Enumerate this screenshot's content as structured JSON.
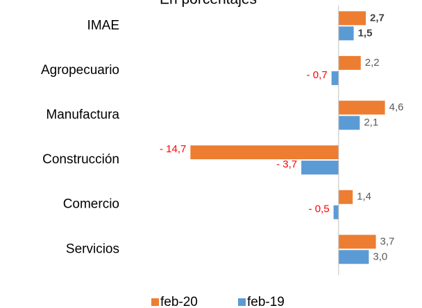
{
  "chart_data": {
    "type": "hbar",
    "title": "En porcentajes",
    "categories": [
      "IMAE",
      "Agropecuario",
      "Manufactura",
      "Construcción",
      "Comercio",
      "Servicios"
    ],
    "series": [
      {
        "name": "feb-20",
        "color": "#ed7d31",
        "values": [
          2.7,
          2.2,
          4.6,
          -14.7,
          1.4,
          3.7
        ],
        "value_labels": [
          "2,7",
          "2,2",
          "4,6",
          "- 14,7",
          "1,4",
          "3,7"
        ]
      },
      {
        "name": "feb-19",
        "color": "#5b9bd5",
        "values": [
          1.5,
          -0.7,
          2.1,
          -3.7,
          -0.5,
          3.0
        ],
        "value_labels": [
          "1,5",
          "- 0,7",
          "2,1",
          "- 3,7",
          "- 0,5",
          "3,0"
        ]
      }
    ],
    "xlim": [
      -15,
      8
    ],
    "legend": "bottom"
  }
}
